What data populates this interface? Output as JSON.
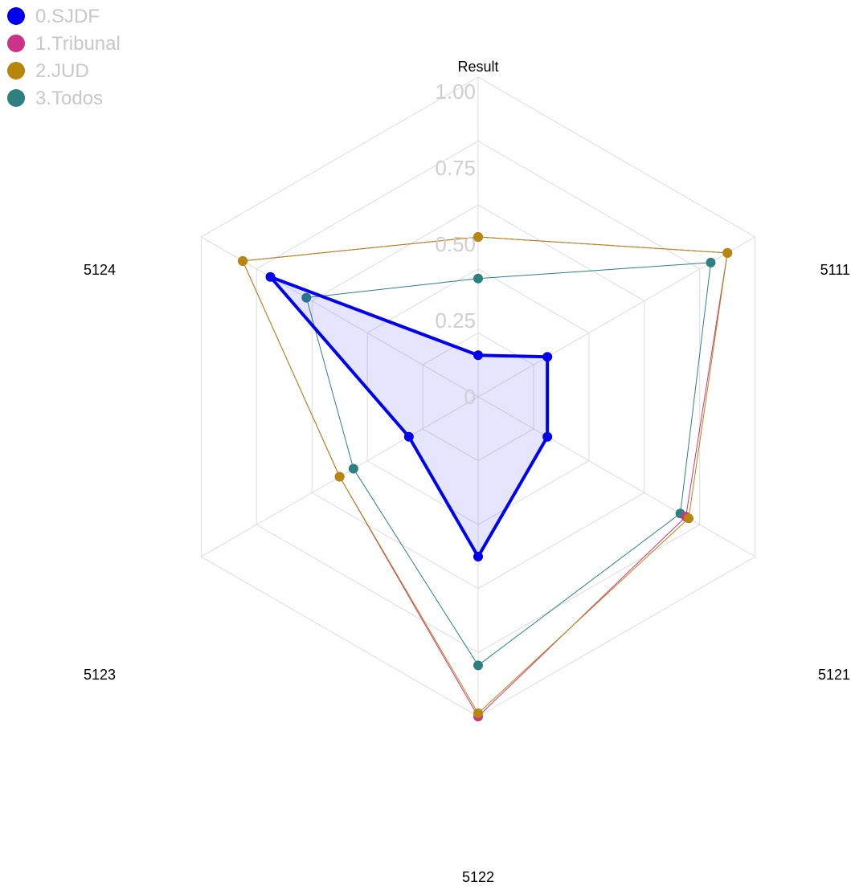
{
  "chart_data": {
    "type": "radar",
    "title": "Result",
    "axes": [
      "5111",
      "5121",
      "5122",
      "5123",
      "5124",
      "Result"
    ],
    "rlim": [
      0,
      1
    ],
    "r_ticks": [
      "0",
      "0.25",
      "0.50",
      "0.75",
      "1.00"
    ],
    "r_tick_values": [
      0,
      0.25,
      0.5,
      0.75,
      1.0
    ],
    "grid": true,
    "legend_position": "top-left",
    "series": [
      {
        "name": "0.SJDF",
        "color": "#0000ee",
        "filled": true,
        "values": [
          0.25,
          0.25,
          0.5,
          0.25,
          0.75,
          0.13
        ]
      },
      {
        "name": "1.Tribunal",
        "color": "#cc3388",
        "filled": false,
        "values": [
          0.9,
          0.75,
          1.0,
          0.5,
          0.85,
          0.5
        ]
      },
      {
        "name": "2.JUD",
        "color": "#b8860b",
        "filled": false,
        "values": [
          0.9,
          0.76,
          0.99,
          0.5,
          0.85,
          0.5
        ]
      },
      {
        "name": "3.Todos",
        "color": "#2e8080",
        "filled": false,
        "values": [
          0.84,
          0.73,
          0.84,
          0.45,
          0.62,
          0.37
        ]
      }
    ]
  }
}
